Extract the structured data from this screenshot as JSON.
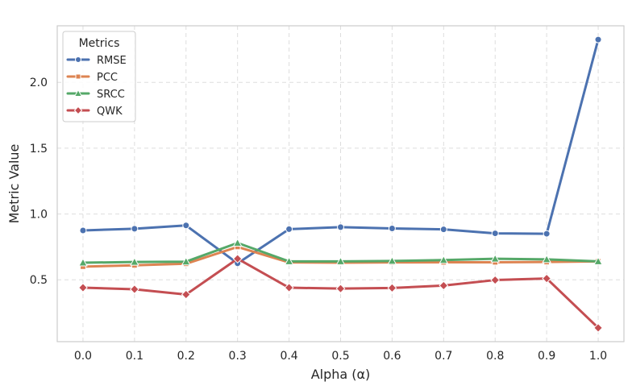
{
  "chart_data": {
    "type": "line",
    "title": "",
    "xlabel": "Alpha (α)",
    "ylabel": "Metric Value",
    "x": [
      0.0,
      0.1,
      0.2,
      0.3,
      0.4,
      0.5,
      0.6,
      0.7,
      0.8,
      0.9,
      1.0
    ],
    "x_tick_labels": [
      "0.0",
      "0.1",
      "0.2",
      "0.3",
      "0.4",
      "0.5",
      "0.6",
      "0.7",
      "0.8",
      "0.9",
      "1.0"
    ],
    "y_ticks": [
      0.5,
      1.0,
      1.5,
      2.0
    ],
    "y_tick_labels": [
      "0.5",
      "1.0",
      "1.5",
      "2.0"
    ],
    "xlim": [
      -0.05,
      1.05
    ],
    "ylim": [
      0.03,
      2.43
    ],
    "grid": true,
    "legend": {
      "title": "Metrics",
      "placement": "top-left"
    },
    "series": [
      {
        "name": "RMSE",
        "marker": "circle",
        "color": "#4c72b0",
        "values": [
          0.875,
          0.888,
          0.913,
          0.625,
          0.885,
          0.9,
          0.89,
          0.883,
          0.853,
          0.85,
          2.325
        ]
      },
      {
        "name": "PCC",
        "marker": "square",
        "color": "#dd8452",
        "values": [
          0.6,
          0.61,
          0.622,
          0.75,
          0.632,
          0.63,
          0.632,
          0.633,
          0.633,
          0.635,
          0.64
        ]
      },
      {
        "name": "SRCC",
        "marker": "triangle",
        "color": "#55a868",
        "values": [
          0.63,
          0.635,
          0.638,
          0.78,
          0.64,
          0.64,
          0.643,
          0.65,
          0.66,
          0.655,
          0.64
        ]
      },
      {
        "name": "QWK",
        "marker": "diamond",
        "color": "#c44e52",
        "values": [
          0.44,
          0.428,
          0.388,
          0.66,
          0.44,
          0.433,
          0.438,
          0.456,
          0.498,
          0.51,
          0.135
        ]
      }
    ]
  }
}
